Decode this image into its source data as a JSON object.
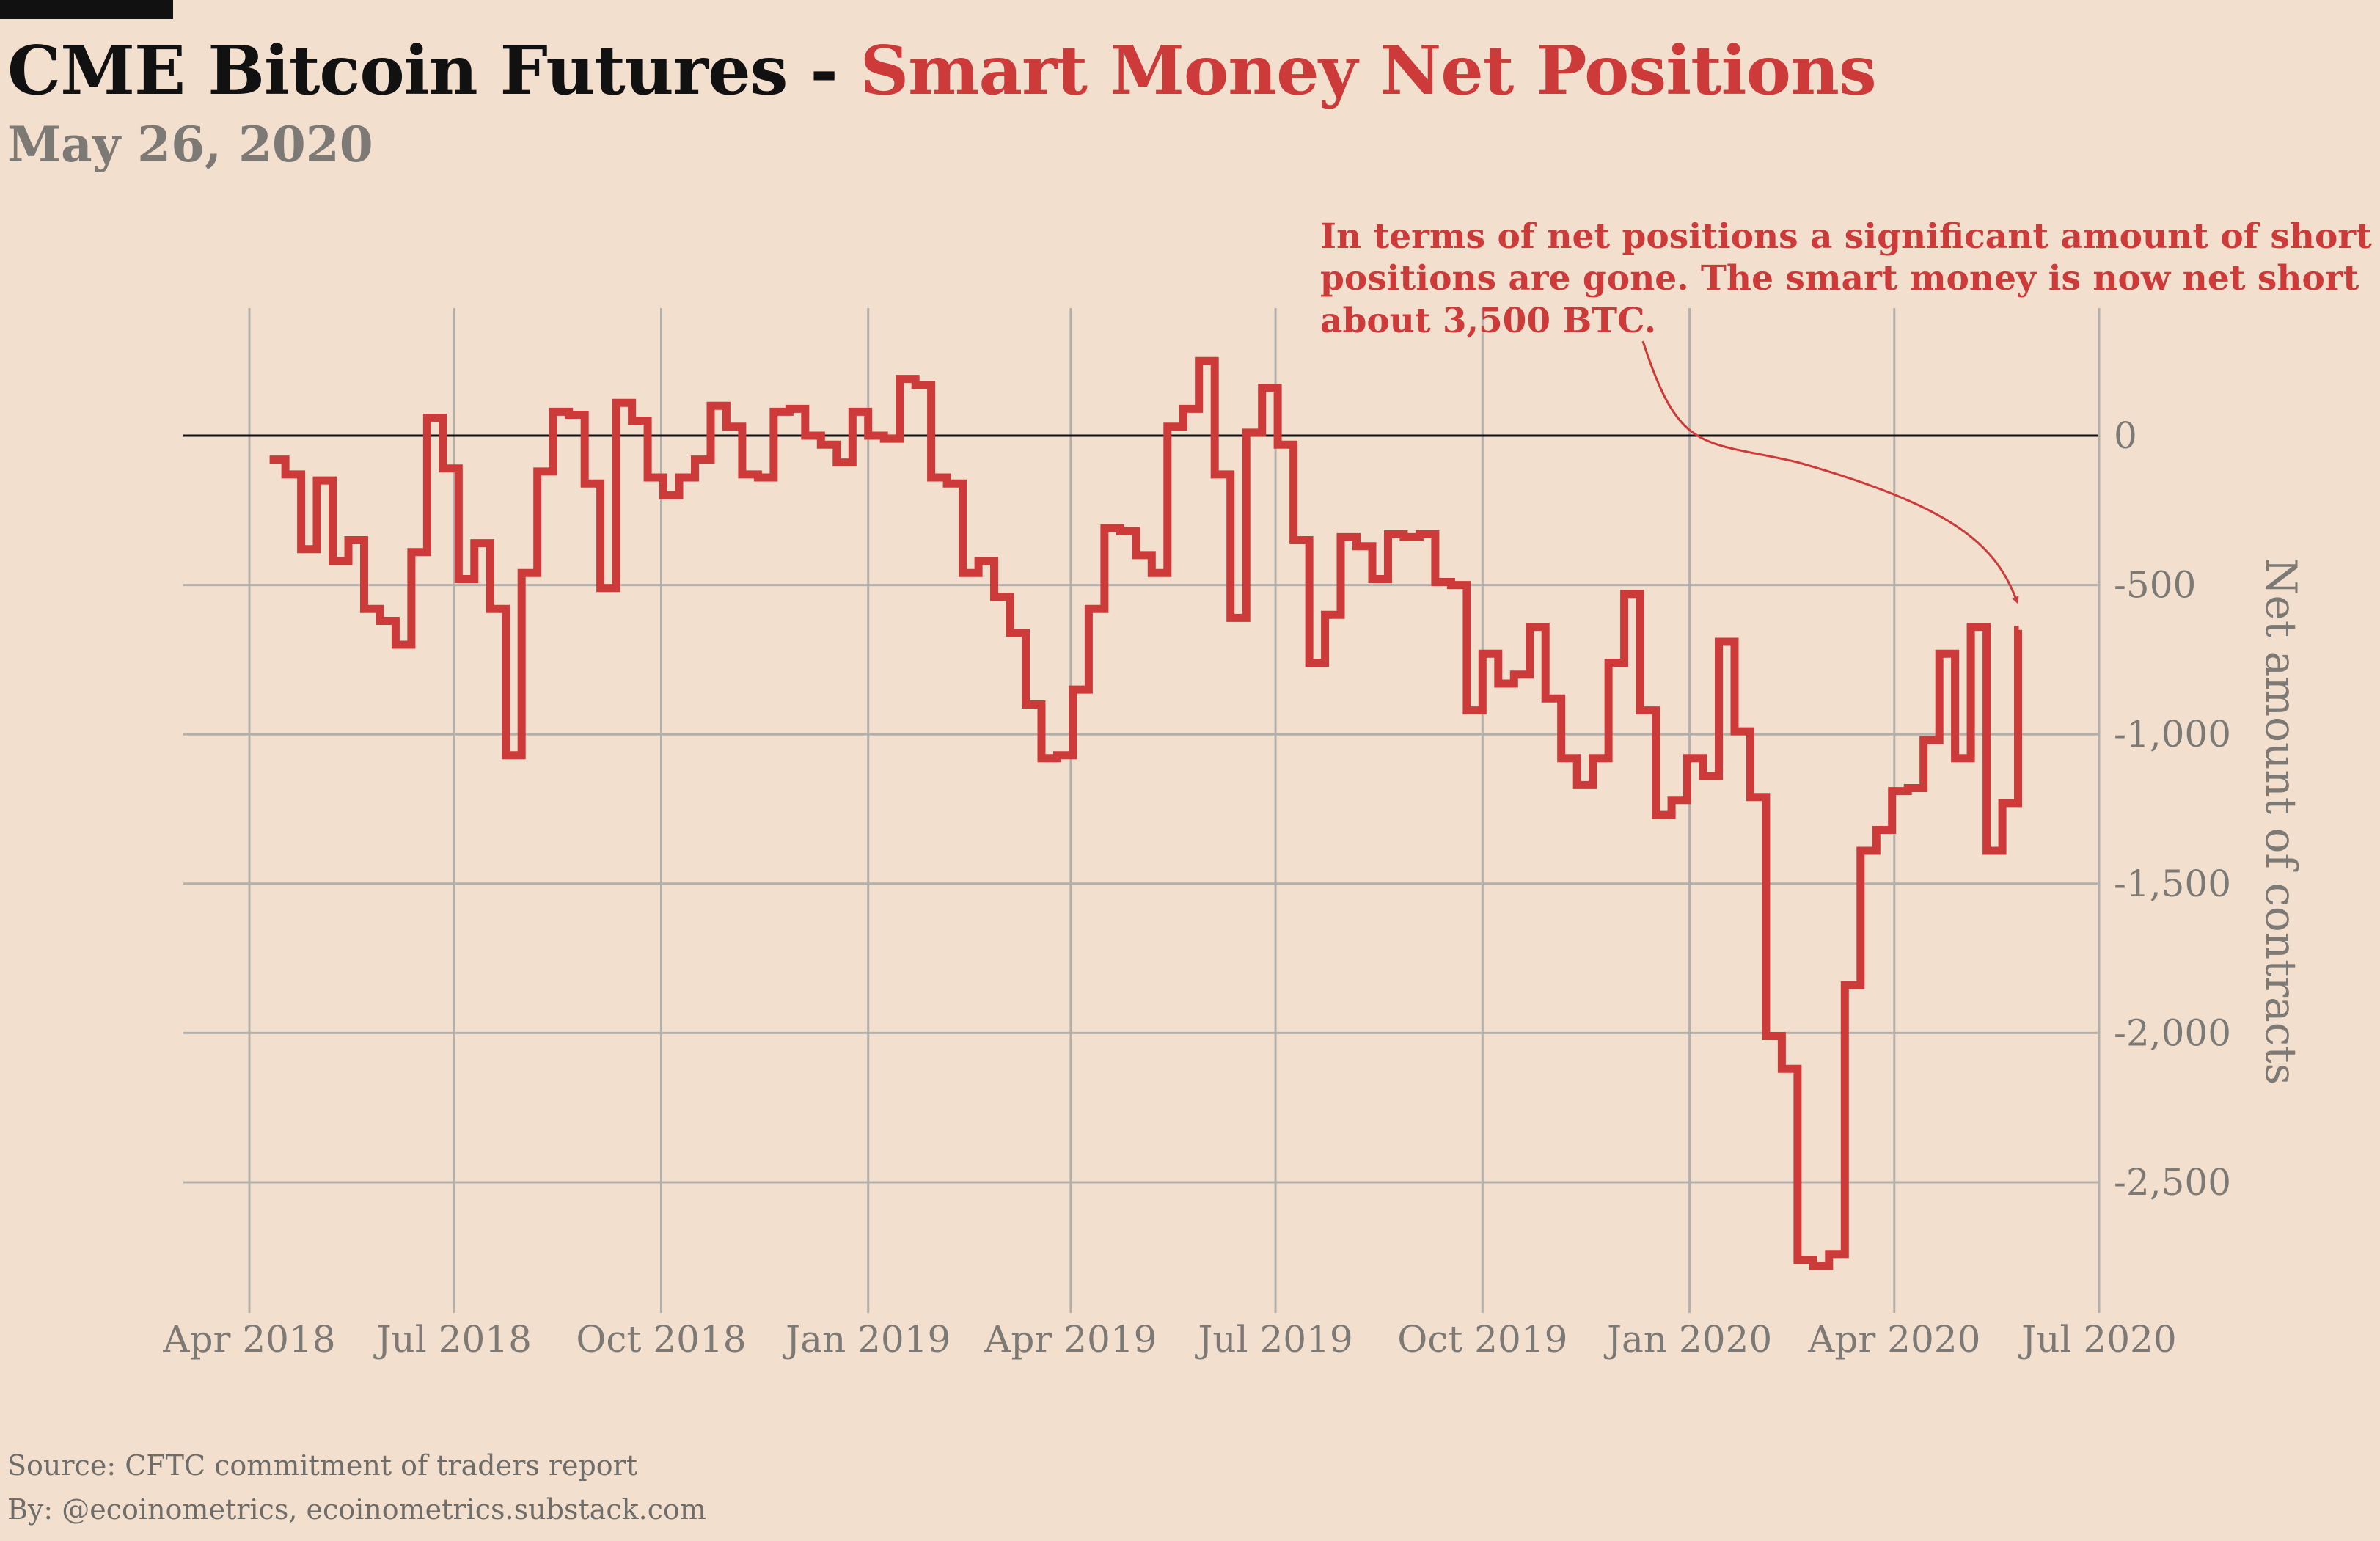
{
  "header": {
    "title_main": "CME Bitcoin Futures - ",
    "title_accent": "Smart Money Net Positions",
    "date": "May 26, 2020"
  },
  "footer": {
    "source": "Source: CFTC commitment of traders report",
    "by": "By: @ecoinometrics, ecoinometrics.substack.com"
  },
  "colors": {
    "background": "#f3dfcd",
    "series": "#cc3a3a",
    "grid": "#b3b0ab",
    "zero_line": "#111111",
    "axis_text": "#7d7a76"
  },
  "chart_data": {
    "type": "line",
    "step": true,
    "title": "CME Bitcoin Futures - Smart Money Net Positions",
    "subtitle": "May 26, 2020",
    "xlabel": "",
    "ylabel": "Net amount of contracts",
    "ylim": [
      -2800,
      400
    ],
    "xlim": [
      "2018-04-01",
      "2020-07-01"
    ],
    "y_axis_position": "right",
    "grid": true,
    "x_ticks": [
      "Apr 2018",
      "Jul 2018",
      "Oct 2018",
      "Jan 2019",
      "Apr 2019",
      "Jul 2019",
      "Oct 2019",
      "Jan 2020",
      "Apr 2020",
      "Jul 2020"
    ],
    "y_ticks": [
      0,
      -500,
      -1000,
      -1500,
      -2000,
      -2500
    ],
    "y_tick_labels": [
      "0",
      "-500",
      "-1,000",
      "-1,500",
      "-2,000",
      "-2,500"
    ],
    "annotation": {
      "lines": [
        "In terms of net positions a significant amount of short",
        "positions are gone. The smart money is now net short",
        "about 3,500 BTC."
      ],
      "points_to": "last value"
    },
    "series": [
      {
        "x": [
          "2018-04-10",
          "2018-04-17",
          "2018-04-24",
          "2018-05-01",
          "2018-05-08",
          "2018-05-15",
          "2018-05-22",
          "2018-05-29",
          "2018-06-05",
          "2018-06-12",
          "2018-06-19",
          "2018-06-26",
          "2018-07-03",
          "2018-07-10",
          "2018-07-17",
          "2018-07-24",
          "2018-07-31",
          "2018-08-07",
          "2018-08-14",
          "2018-08-21",
          "2018-08-28",
          "2018-09-04",
          "2018-09-11",
          "2018-09-18",
          "2018-09-25",
          "2018-10-02",
          "2018-10-09",
          "2018-10-16",
          "2018-10-23",
          "2018-10-30",
          "2018-11-06",
          "2018-11-13",
          "2018-11-20",
          "2018-11-27",
          "2018-12-04",
          "2018-12-11",
          "2018-12-18",
          "2018-12-25",
          "2019-01-01",
          "2019-01-08",
          "2019-01-15",
          "2019-01-22",
          "2019-01-29",
          "2019-02-05",
          "2019-02-12",
          "2019-02-19",
          "2019-02-26",
          "2019-03-05",
          "2019-03-12",
          "2019-03-19",
          "2019-03-26",
          "2019-04-02",
          "2019-04-09",
          "2019-04-16",
          "2019-04-23",
          "2019-04-30",
          "2019-05-07",
          "2019-05-14",
          "2019-05-21",
          "2019-05-28",
          "2019-06-04",
          "2019-06-11",
          "2019-06-18",
          "2019-06-25",
          "2019-07-02",
          "2019-07-09",
          "2019-07-16",
          "2019-07-23",
          "2019-07-30",
          "2019-08-06",
          "2019-08-13",
          "2019-08-20",
          "2019-08-27",
          "2019-09-03",
          "2019-09-10",
          "2019-09-17",
          "2019-09-24",
          "2019-10-01",
          "2019-10-08",
          "2019-10-15",
          "2019-10-22",
          "2019-10-29",
          "2019-11-05",
          "2019-11-12",
          "2019-11-19",
          "2019-11-26",
          "2019-12-03",
          "2019-12-10",
          "2019-12-17",
          "2019-12-24",
          "2019-12-31",
          "2020-01-07",
          "2020-01-14",
          "2020-01-21",
          "2020-01-28",
          "2020-02-04",
          "2020-02-11",
          "2020-02-18",
          "2020-02-25",
          "2020-03-03",
          "2020-03-10",
          "2020-03-17",
          "2020-03-24",
          "2020-03-31",
          "2020-04-07",
          "2020-04-14",
          "2020-04-21",
          "2020-04-28",
          "2020-05-05",
          "2020-05-12",
          "2020-05-19",
          "2020-05-26"
        ],
        "values": [
          -80,
          -130,
          -380,
          -150,
          -420,
          -350,
          -580,
          -620,
          -700,
          -390,
          60,
          -110,
          -480,
          -360,
          -580,
          -1070,
          -460,
          -120,
          80,
          70,
          -160,
          -510,
          110,
          50,
          -140,
          -200,
          -140,
          -80,
          100,
          30,
          -130,
          -140,
          80,
          90,
          0,
          -30,
          -90,
          80,
          0,
          -10,
          190,
          170,
          -140,
          -160,
          -460,
          -420,
          -540,
          -660,
          -900,
          -1080,
          -1070,
          -850,
          -580,
          -310,
          -320,
          -400,
          -460,
          30,
          90,
          250,
          -130,
          -610,
          10,
          160,
          -30,
          -350,
          -760,
          -600,
          -340,
          -370,
          -480,
          -330,
          -340,
          -330,
          -490,
          -500,
          -920,
          -730,
          -830,
          -800,
          -640,
          -880,
          -1080,
          -1170,
          -1080,
          -760,
          -530,
          -920,
          -1270,
          -1220,
          -1080,
          -1140,
          -690,
          -990,
          -1210,
          -2010,
          -2120,
          -2760,
          -2780,
          -2740,
          -1840,
          -1390,
          -1320,
          -1190,
          -1180,
          -1020,
          -730,
          -1080,
          -640,
          -1390,
          -1230,
          -650
        ]
      }
    ]
  }
}
